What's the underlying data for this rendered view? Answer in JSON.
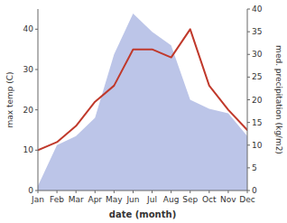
{
  "chart_data": {
    "type": "line",
    "xlabel": "date (month)",
    "ylabel": "max temp (C)",
    "y2label": "med. precipitation (kg/m2)",
    "categories": [
      "Jan",
      "Feb",
      "Mar",
      "Apr",
      "May",
      "Jun",
      "Jul",
      "Aug",
      "Sep",
      "Oct",
      "Nov",
      "Dec"
    ],
    "series": [
      {
        "type": "line",
        "color": "#c0392b",
        "values": [
          10,
          12,
          16,
          22,
          26,
          35,
          35,
          33,
          40,
          26,
          20,
          15
        ]
      },
      {
        "type": "area",
        "color": "#bcc5e8",
        "axis": "y2",
        "values": [
          1,
          10,
          12,
          16,
          30,
          39,
          35,
          32,
          20,
          18,
          17,
          12
        ]
      }
    ],
    "ylim": [
      0,
      45
    ],
    "yticks": [
      0,
      10,
      20,
      30,
      40
    ],
    "y2lim": [
      0,
      40
    ],
    "y2ticks": [
      0,
      5,
      10,
      15,
      20,
      25,
      30,
      35,
      40
    ],
    "grid": false
  }
}
